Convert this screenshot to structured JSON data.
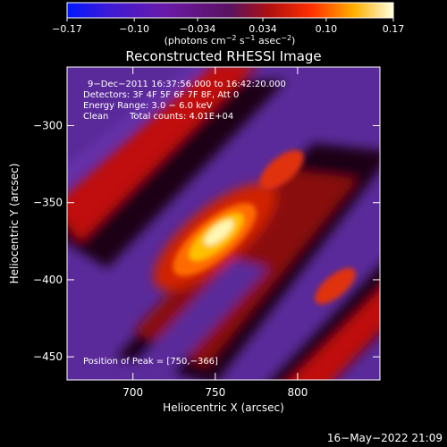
{
  "chart_data": {
    "type": "heatmap",
    "title": "Reconstructed RHESSI Image",
    "xlabel": "Heliocentric X (arcsec)",
    "ylabel": "Heliocentric Y (arcsec)",
    "xlim": [
      660,
      850
    ],
    "ylim": [
      -465,
      -262
    ],
    "x_ticks": [
      700,
      750,
      800
    ],
    "y_ticks": [
      -300,
      -350,
      -400,
      -450
    ],
    "x_tick_labels": [
      "700",
      "750",
      "800"
    ],
    "y_tick_labels": [
      "−300",
      "−350",
      "−400",
      "−450"
    ],
    "colorbar": {
      "range": [
        -0.17,
        0.17
      ],
      "ticks": [
        -0.17,
        -0.1,
        -0.034,
        0.034,
        0.1,
        0.17
      ],
      "tick_labels": [
        "−0.17",
        "−0.10",
        "−0.034",
        "0.034",
        "0.10",
        "0.17"
      ],
      "unit_main": "(photons cm",
      "unit_sup1": "−2",
      "unit_mid1": " s",
      "unit_sup2": "−1",
      "unit_mid2": " asec",
      "unit_sup3": "−2",
      "unit_end": ")"
    },
    "annotations": {
      "time_range": "9−Dec−2011 16:37:56.000 to 16:42:20.000",
      "detectors": "Detectors: 3F 4F 5F 6F 7F 8F, Att 0",
      "energy": "Energy Range: 3.0 − 6.0 keV",
      "clean": "Clean",
      "total_counts": "Total counts: 4.01E+04",
      "peak": "Position of Peak = [750,−366]"
    },
    "peak": [
      750,
      -366
    ]
  },
  "timestamp": "16−May−2022 21:09"
}
